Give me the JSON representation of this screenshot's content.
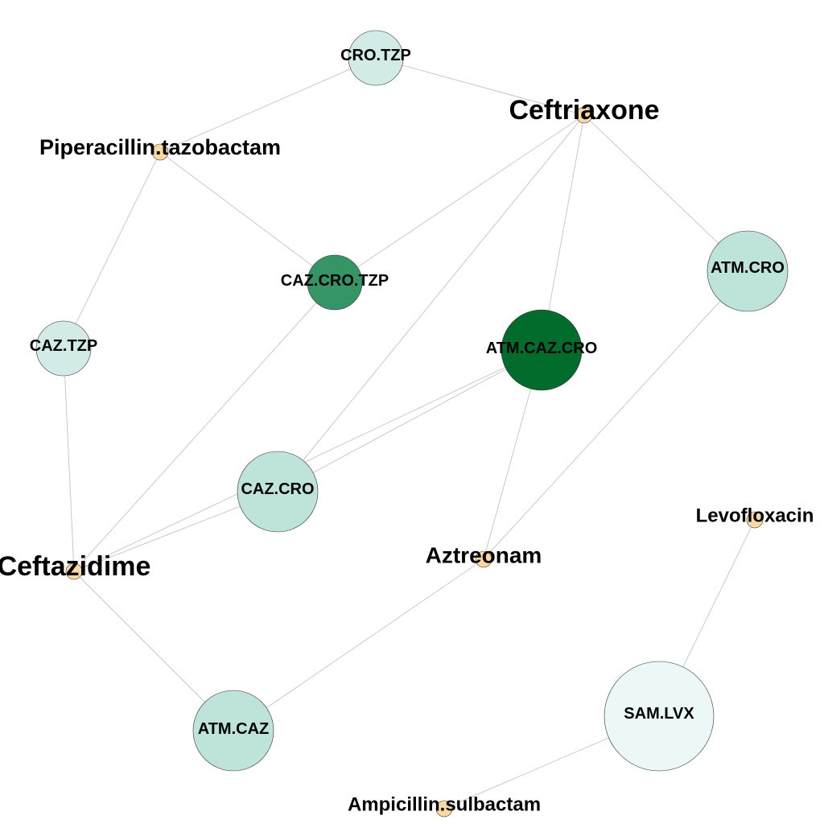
{
  "diagram": {
    "drug_color": "#fad9a1",
    "edge_color": "#c9c9c9",
    "drugs": [
      {
        "id": "ceftriaxone",
        "label": "Ceftriaxone"
      },
      {
        "id": "piperacillin",
        "label": "Piperacillin.tazobactam"
      },
      {
        "id": "ceftazidime",
        "label": "Ceftazidime"
      },
      {
        "id": "aztreonam",
        "label": "Aztreonam"
      },
      {
        "id": "levofloxacin",
        "label": "Levofloxacin"
      },
      {
        "id": "ampicillin",
        "label": "Ampicillin.sulbactam"
      }
    ],
    "combos": [
      {
        "id": "cro_tzp",
        "label": "CRO.TZP",
        "color": "#d2ebe6"
      },
      {
        "id": "caz_cro_tzp",
        "label": "CAZ.CRO.TZP",
        "color": "#359566"
      },
      {
        "id": "caz_tzp",
        "label": "CAZ.TZP",
        "color": "#d2ebe6"
      },
      {
        "id": "atm_cro",
        "label": "ATM.CRO",
        "color": "#bde3db"
      },
      {
        "id": "atm_caz_cro",
        "label": "ATM.CAZ.CRO",
        "color": "#026c2d"
      },
      {
        "id": "caz_cro",
        "label": "CAZ.CRO",
        "color": "#bde3db"
      },
      {
        "id": "atm_caz",
        "label": "ATM.CAZ",
        "color": "#bde3db"
      },
      {
        "id": "sam_lvx",
        "label": "SAM.LVX",
        "color": "#ecf8f8"
      }
    ],
    "edges": [
      [
        "cro_tzp",
        "piperacillin"
      ],
      [
        "cro_tzp",
        "ceftriaxone"
      ],
      [
        "piperacillin",
        "caz_cro_tzp"
      ],
      [
        "piperacillin",
        "caz_tzp"
      ],
      [
        "ceftriaxone",
        "caz_cro_tzp"
      ],
      [
        "ceftriaxone",
        "atm_caz_cro"
      ],
      [
        "ceftriaxone",
        "caz_cro"
      ],
      [
        "ceftriaxone",
        "atm_cro"
      ],
      [
        "caz_tzp",
        "ceftazidime"
      ],
      [
        "caz_cro_tzp",
        "ceftazidime"
      ],
      [
        "atm_caz_cro",
        "caz_cro"
      ],
      [
        "atm_caz_cro",
        "aztreonam"
      ],
      [
        "atm_caz_cro",
        "ceftazidime"
      ],
      [
        "caz_cro",
        "ceftazidime"
      ],
      [
        "atm_cro",
        "aztreonam"
      ],
      [
        "ceftazidime",
        "atm_caz"
      ],
      [
        "aztreonam",
        "atm_caz"
      ],
      [
        "levofloxacin",
        "sam_lvx"
      ],
      [
        "sam_lvx",
        "ampicillin"
      ]
    ]
  }
}
